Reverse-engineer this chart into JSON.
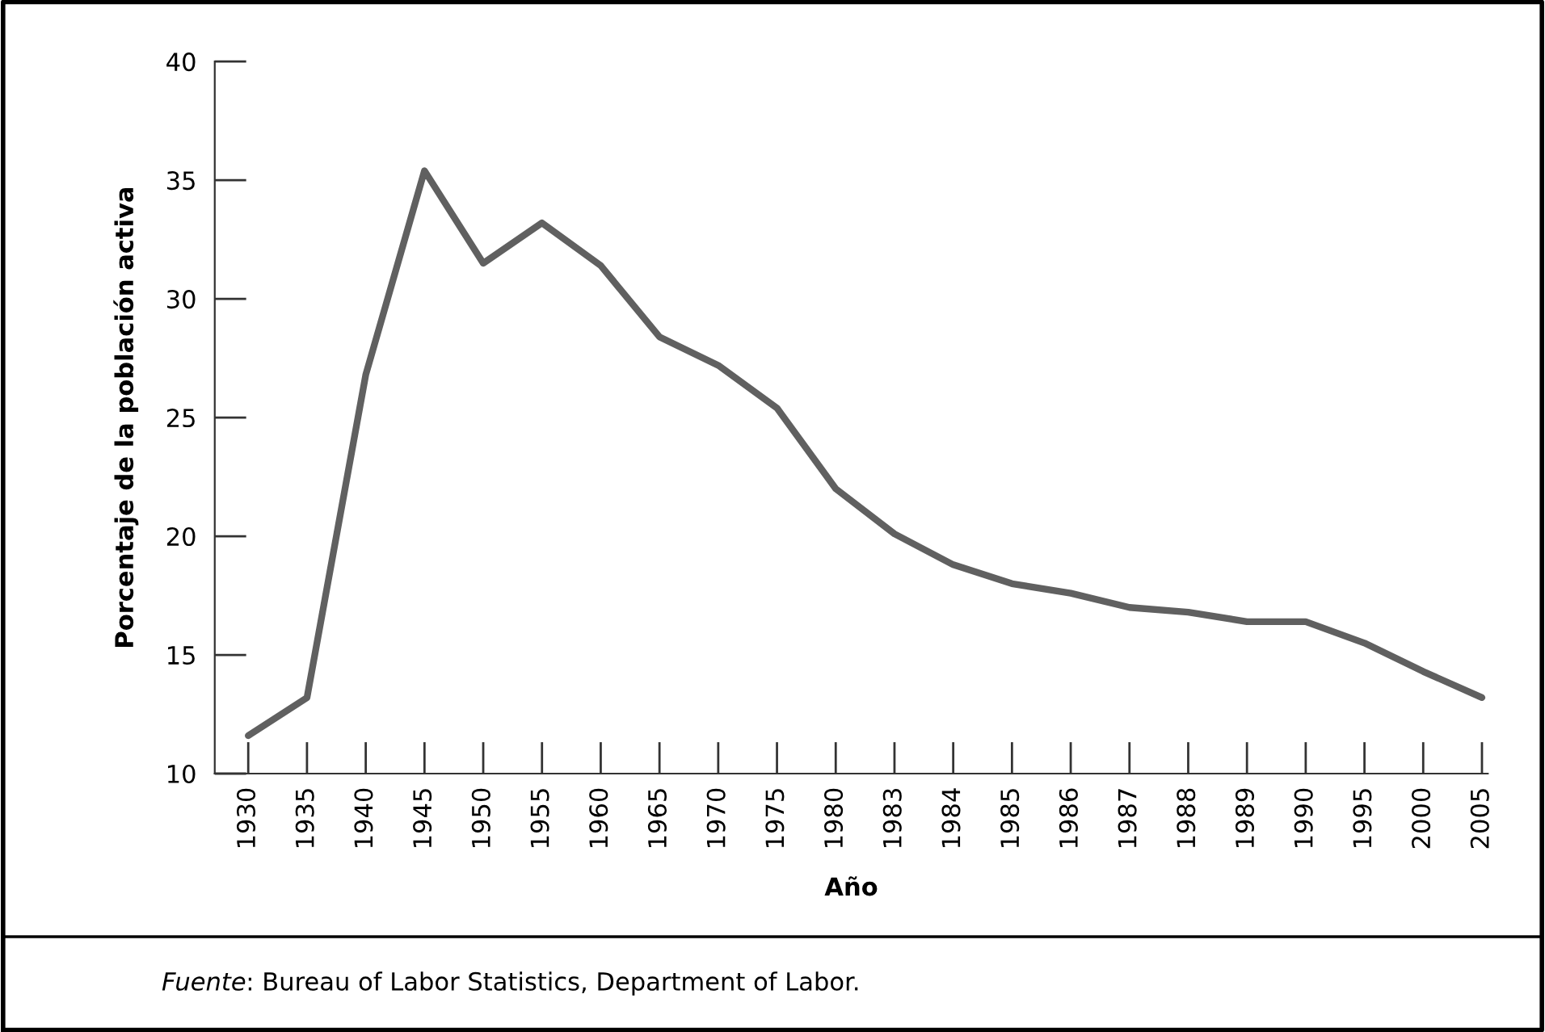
{
  "chart_data": {
    "type": "line",
    "xlabel": "Año",
    "ylabel": "Porcentaje de la población activa",
    "categories": [
      "1930",
      "1935",
      "1940",
      "1945",
      "1950",
      "1955",
      "1960",
      "1965",
      "1970",
      "1975",
      "1980",
      "1983",
      "1984",
      "1985",
      "1986",
      "1987",
      "1988",
      "1989",
      "1990",
      "1995",
      "2000",
      "2005"
    ],
    "series": [
      {
        "color": "#606060",
        "values": [
          11.6,
          13.2,
          26.8,
          35.4,
          31.5,
          33.2,
          31.4,
          28.4,
          27.2,
          25.4,
          22.0,
          20.1,
          18.8,
          18.0,
          17.6,
          17.0,
          16.8,
          16.4,
          16.4,
          15.5,
          14.3,
          13.2
        ]
      }
    ],
    "ylim": [
      10,
      40
    ],
    "yticks": [
      10,
      15,
      20,
      25,
      30,
      35,
      40
    ],
    "grid": false,
    "legend": false,
    "marker": "none",
    "line_style": "solid",
    "annotations": [
      "Fuente: Bureau of Labor Statistics, Department of Labor."
    ]
  }
}
